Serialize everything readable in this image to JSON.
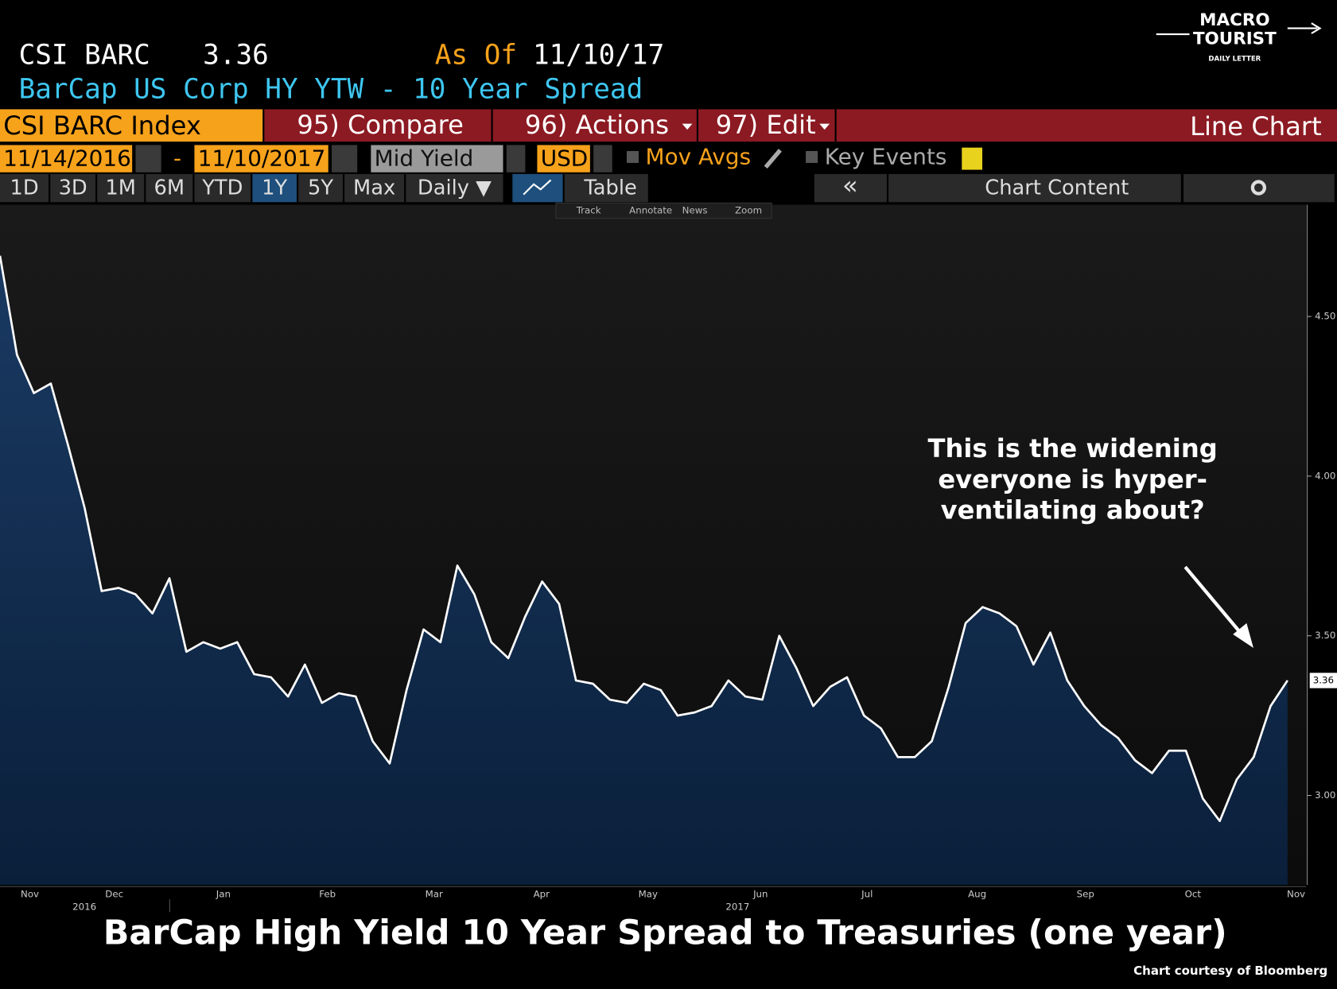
{
  "header": {
    "ticker": "CSI BARC",
    "price": "3.36",
    "as_of_label": "As Of",
    "as_of_date": "11/10/17",
    "description": "BarCap US Corp HY YTW - 10 Year Spread"
  },
  "logo": {
    "line1": "MACRO",
    "line2": "TOURIST",
    "line3": "DAILY LETTER"
  },
  "toolbar": {
    "security": "CSI BARC Index",
    "compare": "95) Compare",
    "actions": "96) Actions",
    "edit": "97) Edit",
    "mode": "Line Chart"
  },
  "controls": {
    "start": "11/14/2016",
    "separator": "-",
    "end": "11/10/2017",
    "field": "Mid Yield",
    "currency": "USD",
    "mov_avgs": "Mov Avgs",
    "key_events": "Key Events"
  },
  "periods": [
    "1D",
    "3D",
    "1M",
    "6M",
    "YTD",
    "1Y",
    "5Y",
    "Max",
    "Daily ▼"
  ],
  "tabs": {
    "table": "Table",
    "collapse": "«",
    "chart_content": "Chart Content"
  },
  "tools": [
    "Track",
    "Annotate",
    "News",
    "Zoom"
  ],
  "chart_data": {
    "type": "line",
    "title": "BarCap High Yield 10 Year Spread to Treasuries (one year)",
    "annotation": [
      "This is the widening",
      "everyone is hyper-",
      "ventilating about?"
    ],
    "source": "Chart courtesy of Bloomberg",
    "color": "#ffffff",
    "xtick_labels": [
      "Nov",
      "Dec",
      "Jan",
      "Feb",
      "Mar",
      "Apr",
      "May",
      "Jun",
      "Jul",
      "Aug",
      "Sep",
      "Oct",
      "Nov"
    ],
    "year_labels": [
      "2016",
      "2017"
    ],
    "values": [
      4.69,
      4.38,
      4.26,
      4.29,
      4.1,
      3.9,
      3.64,
      3.65,
      3.63,
      3.57,
      3.68,
      3.45,
      3.48,
      3.46,
      3.48,
      3.38,
      3.37,
      3.31,
      3.41,
      3.29,
      3.32,
      3.31,
      3.17,
      3.1,
      3.33,
      3.52,
      3.48,
      3.72,
      3.63,
      3.48,
      3.43,
      3.56,
      3.67,
      3.6,
      3.36,
      3.35,
      3.3,
      3.29,
      3.35,
      3.33,
      3.25,
      3.26,
      3.28,
      3.36,
      3.31,
      3.3,
      3.5,
      3.4,
      3.28,
      3.34,
      3.37,
      3.25,
      3.21,
      3.12,
      3.12,
      3.17,
      3.34,
      3.54,
      3.59,
      3.57,
      3.53,
      3.41,
      3.51,
      3.36,
      3.28,
      3.22,
      3.18,
      3.11,
      3.07,
      3.14,
      3.14,
      2.99,
      2.92,
      3.05,
      3.12,
      3.28,
      3.36
    ],
    "ylim": [
      2.72,
      4.85
    ],
    "yticks": [
      {
        "value": 3,
        "label": "3.00"
      },
      {
        "value": 3.5,
        "label": "3.50"
      },
      {
        "value": 4,
        "label": "4.00"
      },
      {
        "value": 4.5,
        "label": "4.50"
      }
    ]
  }
}
